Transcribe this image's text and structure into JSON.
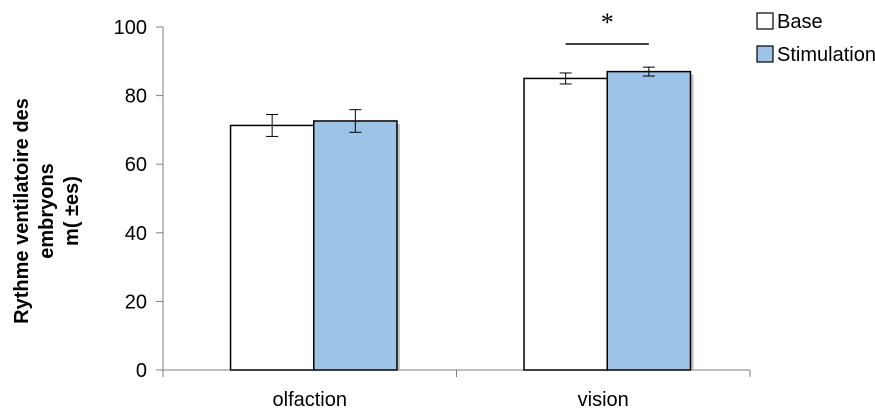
{
  "chart_data": {
    "type": "bar",
    "categories": [
      "olfaction",
      "vision"
    ],
    "series": [
      {
        "name": "Base",
        "color": "#ffffff",
        "values": [
          71.3,
          85.0
        ],
        "errors": [
          3.2,
          1.6
        ]
      },
      {
        "name": "Stimulation",
        "color": "#9dc3e6",
        "values": [
          72.6,
          87.0
        ],
        "errors": [
          3.3,
          1.3
        ]
      }
    ],
    "ylabel_lines": [
      "Rythme ventilatoire des",
      "embryons",
      "m( ±es)"
    ],
    "ylim": [
      0,
      100
    ],
    "yticks": [
      0,
      20,
      40,
      60,
      80,
      100
    ],
    "grid": false,
    "legend_position": "top-right",
    "annotations": [
      {
        "text": "*",
        "category": "vision"
      }
    ]
  }
}
